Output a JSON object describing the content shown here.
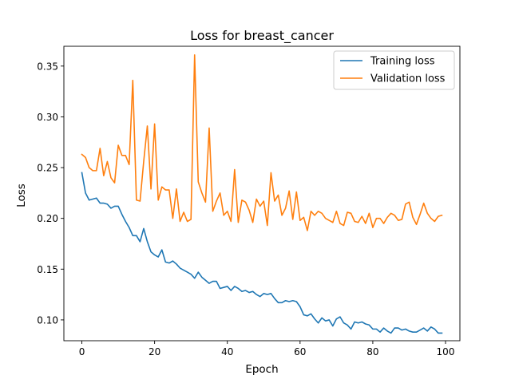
{
  "chart_data": {
    "type": "line",
    "title": "Loss for breast_cancer",
    "xlabel": "Epoch",
    "ylabel": "Loss",
    "xlim": [
      -4.95,
      103.95
    ],
    "ylim": [
      0.0795,
      0.3695
    ],
    "xticks": [
      0,
      20,
      40,
      60,
      80,
      100
    ],
    "yticks": [
      0.1,
      0.15,
      0.2,
      0.25,
      0.3,
      0.35
    ],
    "xtick_labels": [
      "0",
      "20",
      "40",
      "60",
      "80",
      "100"
    ],
    "ytick_labels": [
      "0.10",
      "0.15",
      "0.20",
      "0.25",
      "0.30",
      "0.35"
    ],
    "grid": false,
    "legend_position": "upper right",
    "series": [
      {
        "name": "Training loss",
        "color": "#1f77b4",
        "x": [
          0,
          1,
          2,
          3,
          4,
          5,
          6,
          7,
          8,
          9,
          10,
          11,
          12,
          13,
          14,
          15,
          16,
          17,
          18,
          19,
          20,
          21,
          22,
          23,
          24,
          25,
          26,
          27,
          28,
          29,
          30,
          31,
          32,
          33,
          34,
          35,
          36,
          37,
          38,
          39,
          40,
          41,
          42,
          43,
          44,
          45,
          46,
          47,
          48,
          49,
          50,
          51,
          52,
          53,
          54,
          55,
          56,
          57,
          58,
          59,
          60,
          61,
          62,
          63,
          64,
          65,
          66,
          67,
          68,
          69,
          70,
          71,
          72,
          73,
          74,
          75,
          76,
          77,
          78,
          79,
          80,
          81,
          82,
          83,
          84,
          85,
          86,
          87,
          88,
          89,
          90,
          91,
          92,
          93,
          94,
          95,
          96,
          97,
          98,
          99
        ],
        "values": [
          0.245,
          0.225,
          0.218,
          0.219,
          0.22,
          0.215,
          0.215,
          0.214,
          0.21,
          0.212,
          0.212,
          0.204,
          0.197,
          0.191,
          0.183,
          0.183,
          0.177,
          0.19,
          0.177,
          0.167,
          0.164,
          0.162,
          0.169,
          0.157,
          0.156,
          0.158,
          0.155,
          0.151,
          0.149,
          0.147,
          0.145,
          0.141,
          0.147,
          0.142,
          0.139,
          0.136,
          0.138,
          0.138,
          0.131,
          0.132,
          0.133,
          0.129,
          0.133,
          0.131,
          0.128,
          0.129,
          0.127,
          0.128,
          0.125,
          0.123,
          0.126,
          0.125,
          0.126,
          0.121,
          0.117,
          0.117,
          0.119,
          0.118,
          0.119,
          0.118,
          0.113,
          0.105,
          0.104,
          0.106,
          0.101,
          0.097,
          0.102,
          0.099,
          0.1,
          0.094,
          0.101,
          0.103,
          0.097,
          0.095,
          0.091,
          0.098,
          0.097,
          0.098,
          0.096,
          0.095,
          0.091,
          0.091,
          0.088,
          0.092,
          0.089,
          0.087,
          0.092,
          0.092,
          0.09,
          0.091,
          0.089,
          0.088,
          0.088,
          0.09,
          0.092,
          0.089,
          0.093,
          0.091,
          0.087,
          0.087
        ]
      },
      {
        "name": "Validation loss",
        "color": "#ff7f0e",
        "x": [
          0,
          1,
          2,
          3,
          4,
          5,
          6,
          7,
          8,
          9,
          10,
          11,
          12,
          13,
          14,
          15,
          16,
          17,
          18,
          19,
          20,
          21,
          22,
          23,
          24,
          25,
          26,
          27,
          28,
          29,
          30,
          31,
          32,
          33,
          34,
          35,
          36,
          37,
          38,
          39,
          40,
          41,
          42,
          43,
          44,
          45,
          46,
          47,
          48,
          49,
          50,
          51,
          52,
          53,
          54,
          55,
          56,
          57,
          58,
          59,
          60,
          61,
          62,
          63,
          64,
          65,
          66,
          67,
          68,
          69,
          70,
          71,
          72,
          73,
          74,
          75,
          76,
          77,
          78,
          79,
          80,
          81,
          82,
          83,
          84,
          85,
          86,
          87,
          88,
          89,
          90,
          91,
          92,
          93,
          94,
          95,
          96,
          97,
          98,
          99
        ],
        "values": [
          0.263,
          0.26,
          0.25,
          0.247,
          0.247,
          0.269,
          0.242,
          0.256,
          0.24,
          0.235,
          0.272,
          0.262,
          0.262,
          0.253,
          0.336,
          0.218,
          0.217,
          0.256,
          0.291,
          0.229,
          0.293,
          0.218,
          0.231,
          0.228,
          0.228,
          0.2,
          0.229,
          0.197,
          0.206,
          0.197,
          0.199,
          0.361,
          0.236,
          0.225,
          0.216,
          0.289,
          0.207,
          0.217,
          0.225,
          0.203,
          0.207,
          0.197,
          0.248,
          0.196,
          0.218,
          0.216,
          0.208,
          0.196,
          0.219,
          0.212,
          0.217,
          0.193,
          0.245,
          0.217,
          0.223,
          0.203,
          0.21,
          0.227,
          0.199,
          0.226,
          0.198,
          0.201,
          0.188,
          0.207,
          0.203,
          0.207,
          0.205,
          0.2,
          0.198,
          0.196,
          0.207,
          0.195,
          0.193,
          0.206,
          0.205,
          0.197,
          0.196,
          0.202,
          0.195,
          0.205,
          0.191,
          0.2,
          0.2,
          0.195,
          0.201,
          0.205,
          0.203,
          0.198,
          0.199,
          0.214,
          0.216,
          0.201,
          0.194,
          0.204,
          0.215,
          0.205,
          0.2,
          0.197,
          0.202,
          0.203
        ]
      }
    ]
  }
}
